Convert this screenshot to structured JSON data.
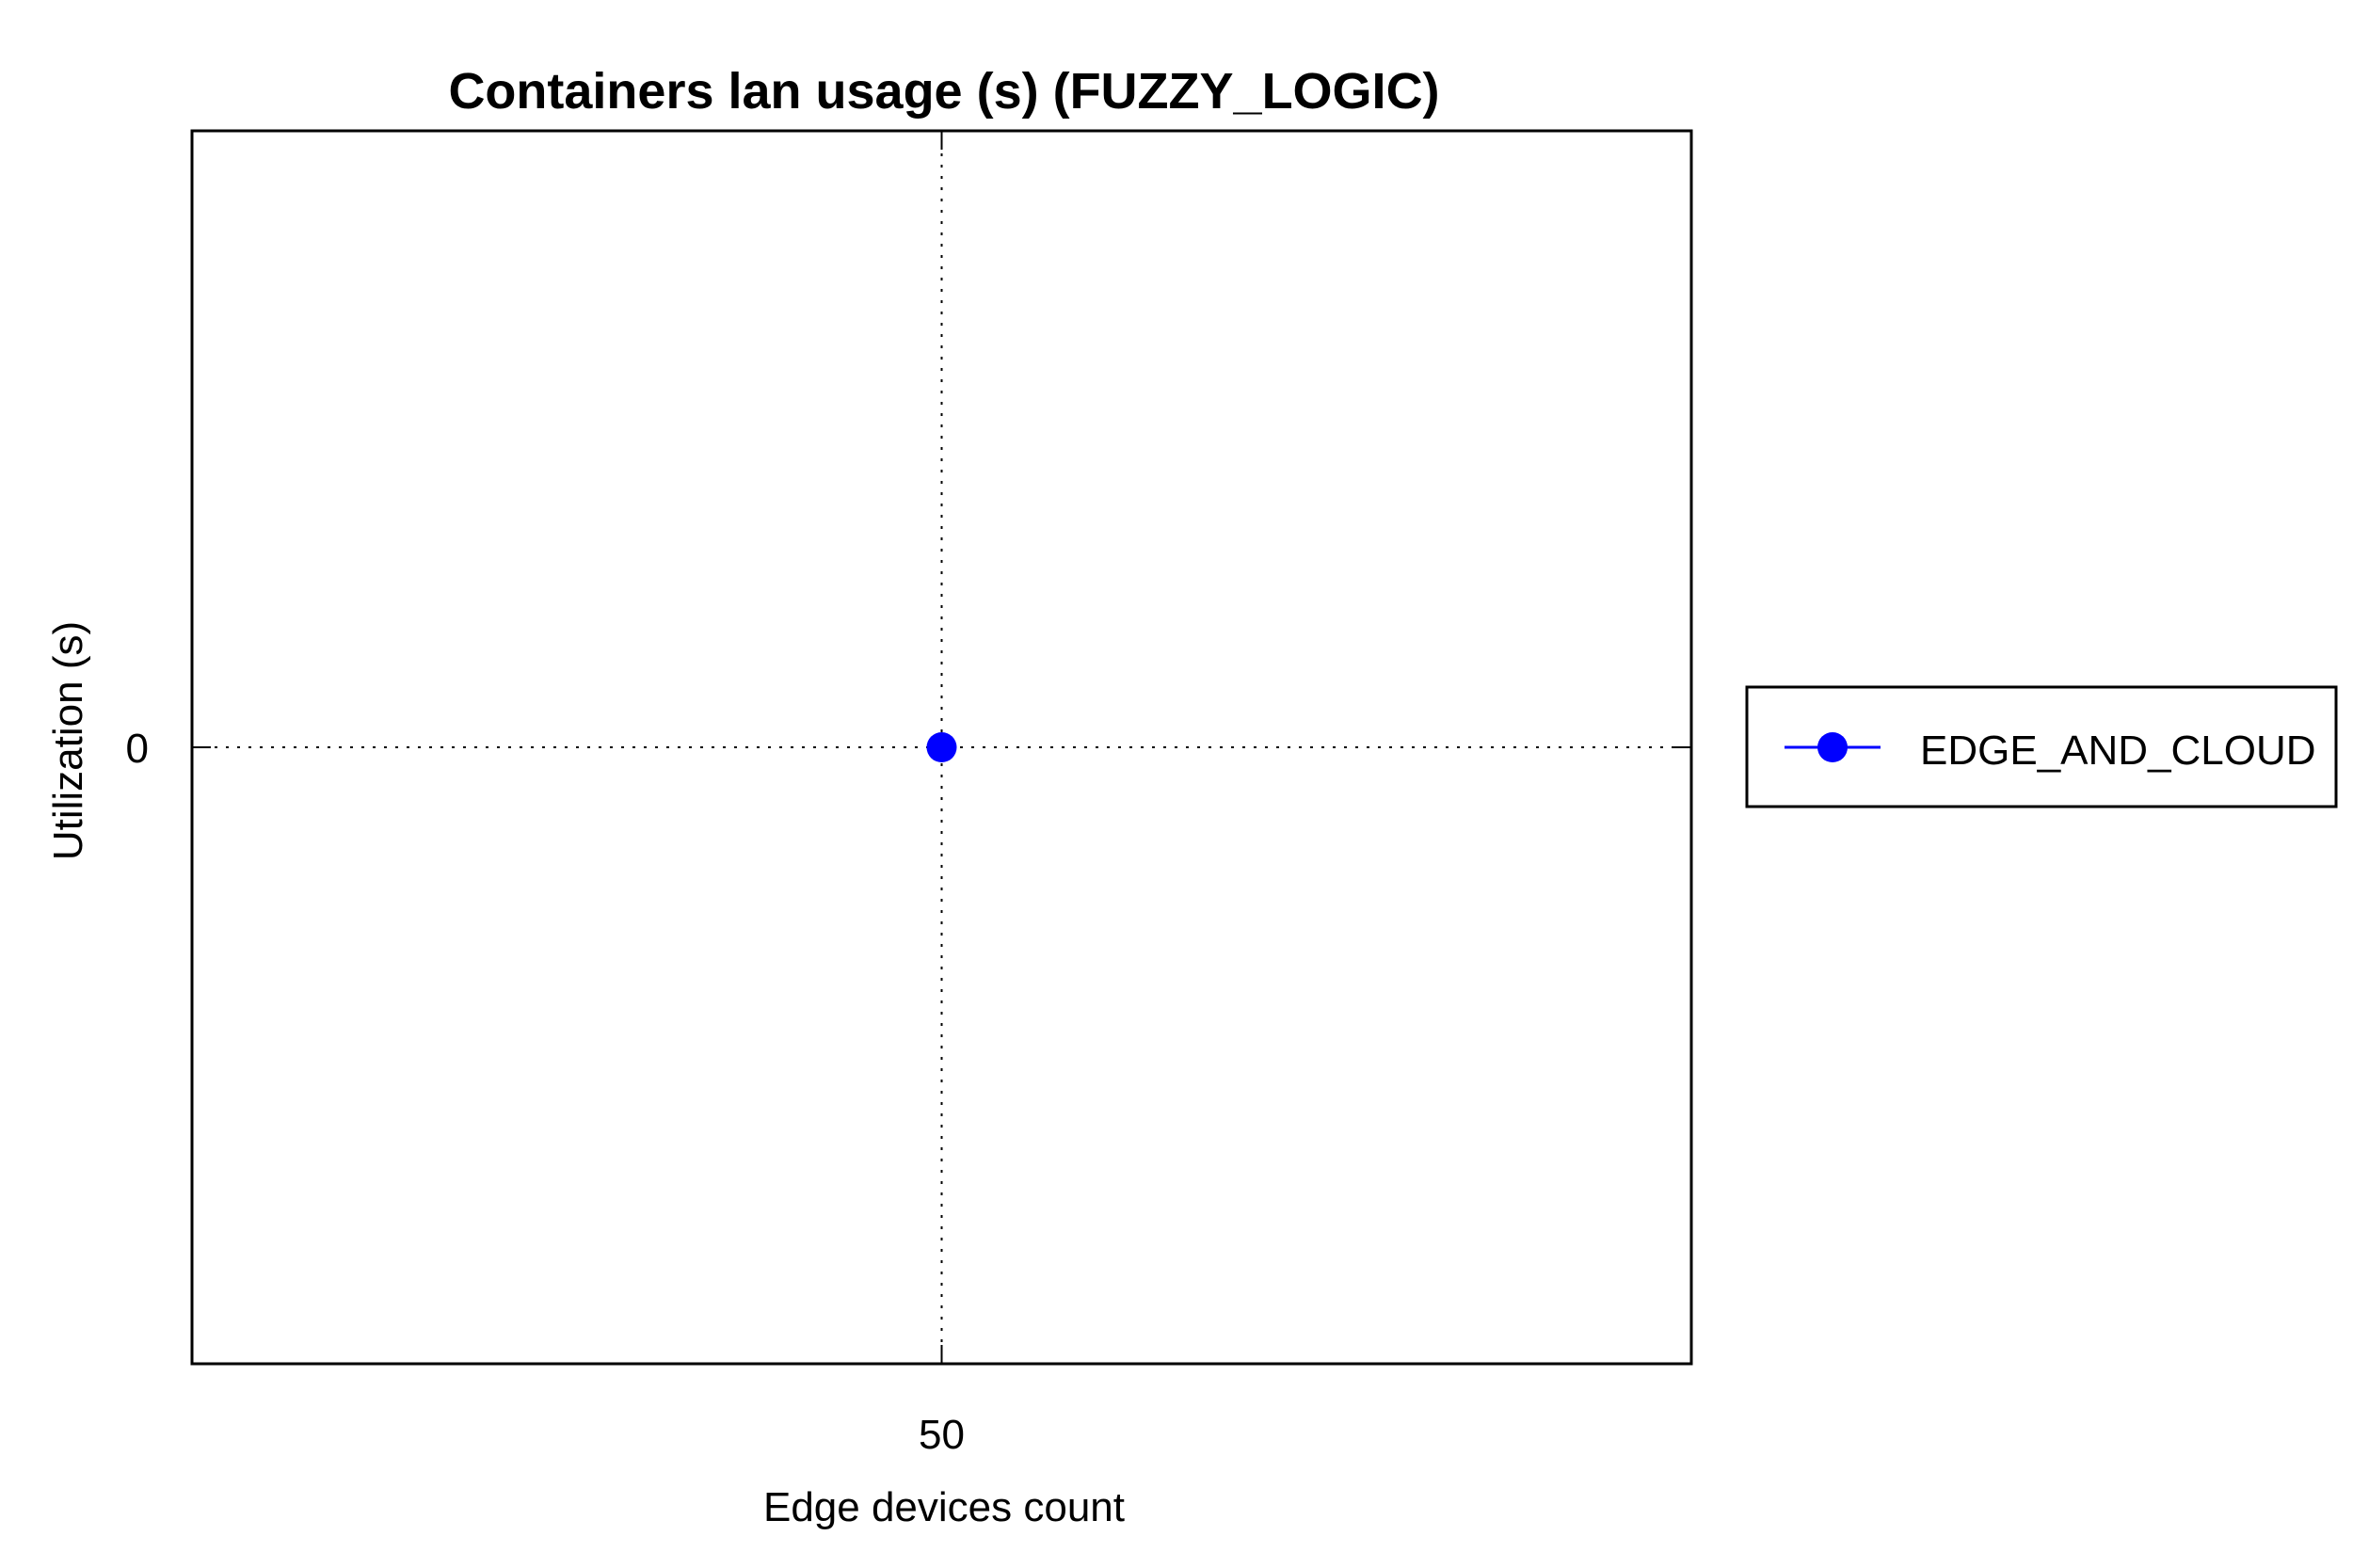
{
  "chart_data": {
    "type": "line",
    "title": "Containers lan usage (s) (FUZZY_LOGIC)",
    "xlabel": "Edge devices count",
    "ylabel": "Utilization (s)",
    "x_ticks": [
      "50"
    ],
    "y_ticks": [
      "0"
    ],
    "x": [
      50
    ],
    "xlim": [
      40,
      60
    ],
    "ylim": [
      -1,
      1
    ],
    "grid": true,
    "legend_position": "outside-right",
    "series": [
      {
        "name": "EDGE_AND_CLOUD",
        "values": [
          0
        ],
        "color": "#0000ff",
        "marker": "circle"
      }
    ]
  }
}
